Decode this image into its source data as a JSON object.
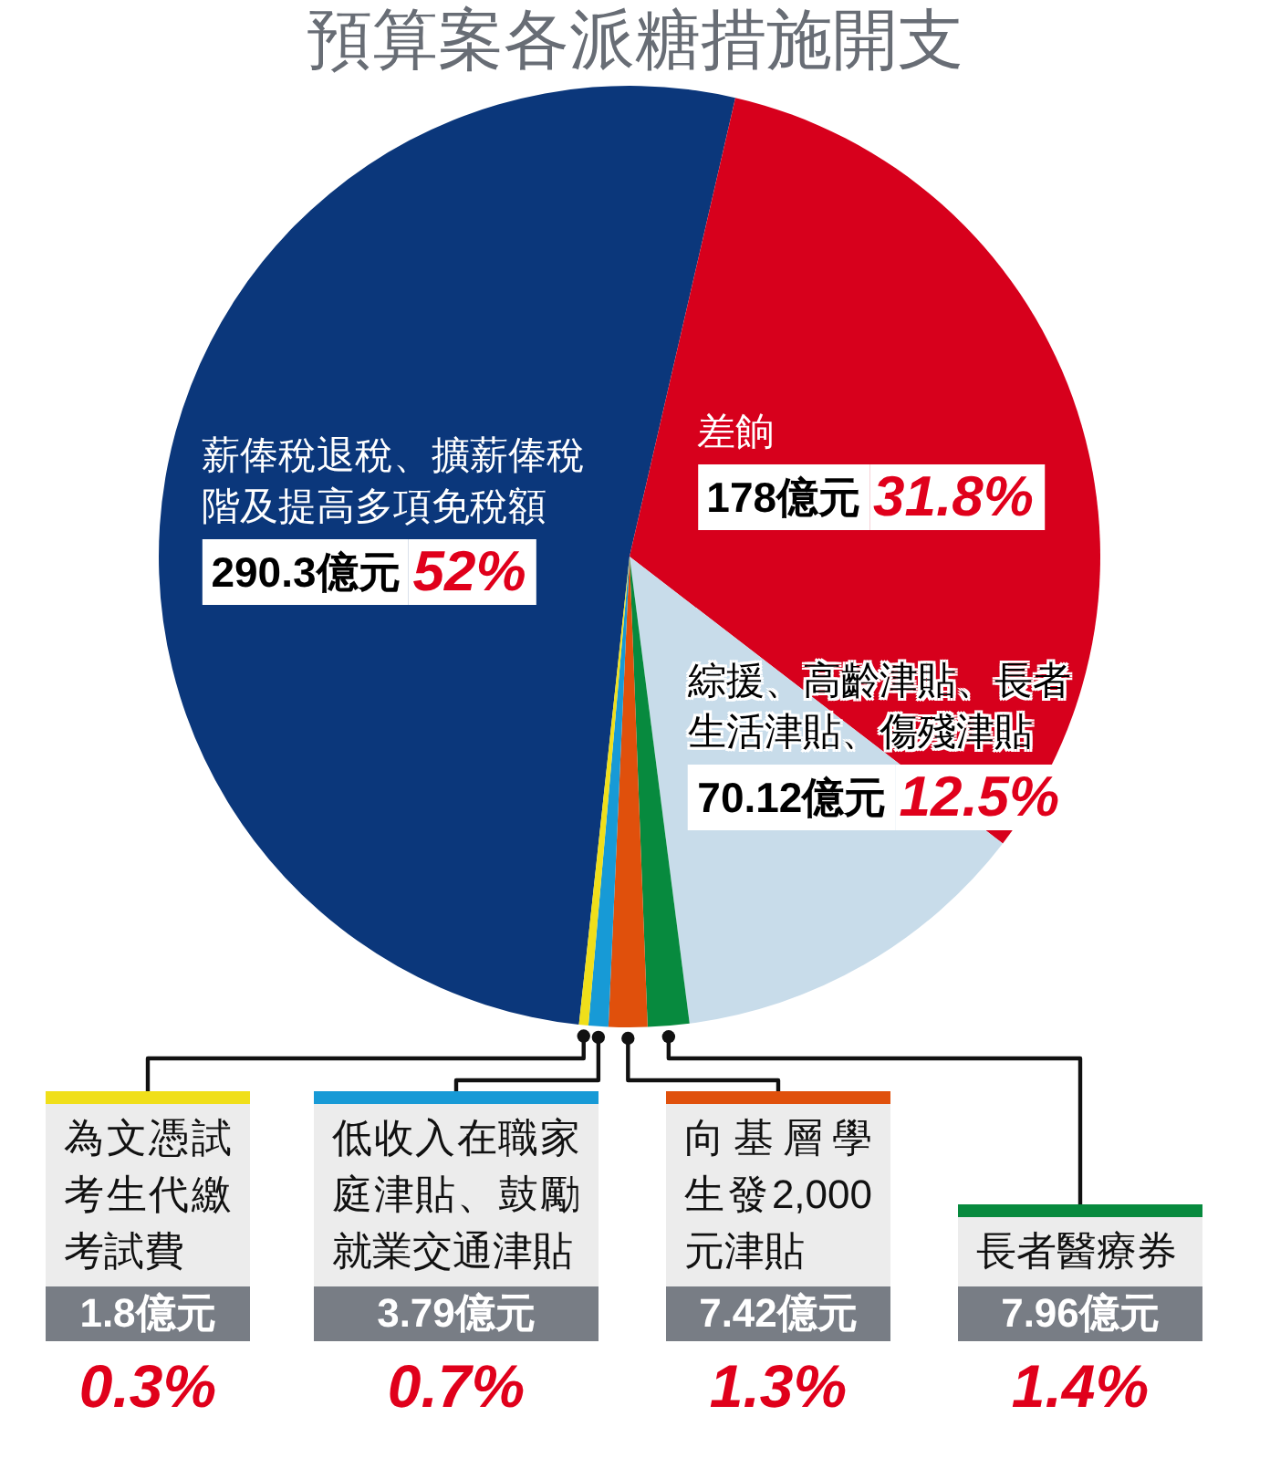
{
  "chart_data": {
    "type": "pie",
    "title": "預算案各派糖措施開支",
    "categories": [
      "薪俸稅退稅、擴薪俸稅階及提高多項免稅額",
      "差餉",
      "綜援、高齡津貼、長者生活津貼、傷殘津貼",
      "長者醫療券",
      "向基層學生發2,000元津貼",
      "低收入在職家庭津貼、鼓勵就業交通津貼",
      "為文憑試考生代繳考試費"
    ],
    "values": [
      290.3,
      178,
      70.12,
      7.96,
      7.42,
      3.79,
      1.8
    ],
    "colors": [
      "#0b377b",
      "#d7001c",
      "#c8dcea",
      "#078a3e",
      "#e0500c",
      "#179ad6",
      "#f0df1a"
    ],
    "value_labels": [
      "290.3億元",
      "178億元",
      "70.12億元",
      "7.96億元",
      "7.42億元",
      "3.79億元",
      "1.8億元"
    ],
    "annotations": [
      {
        "text": "52%",
        "x": "薪俸稅退稅、擴薪俸稅階及提高多項免稅額"
      },
      {
        "text": "31.8%",
        "x": "差餉"
      },
      {
        "text": "12.5%",
        "x": "綜援、高齡津貼、長者生活津貼、傷殘津貼"
      },
      {
        "text": "1.4%",
        "x": "長者醫療券"
      },
      {
        "text": "1.3%",
        "x": "向基層學生發2,000元津貼"
      },
      {
        "text": "0.7%",
        "x": "低收入在職家庭津貼、鼓勵就業交通津貼"
      },
      {
        "text": "0.3%",
        "x": "為文憑試考生代繳考試費"
      }
    ]
  }
}
